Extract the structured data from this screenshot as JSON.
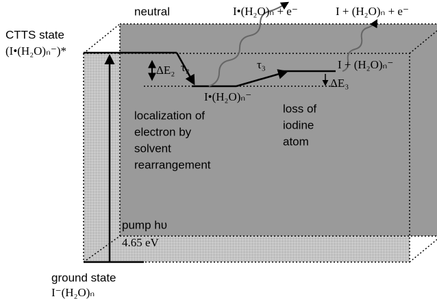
{
  "labels": {
    "neutral": "neutral",
    "top_product_1": "I•(H₂O)ₙ + e⁻",
    "top_product_2": "I + (H₂O)ₙ + e⁻",
    "ctts_title": "CTTS state",
    "ctts_formula": "(I•(H₂O)ₙ⁻)*",
    "delta_e2": "ΔE₂",
    "tau2": "τ₂",
    "intermediate": "I•(H₂O)ₙ⁻",
    "tau3": "τ₃",
    "final": "I + (H₂O)ₙ⁻",
    "delta_e3": "ΔE₃",
    "localization": [
      "localization of",
      "electron by",
      "solvent",
      "rearrangement"
    ],
    "loss": [
      "loss of",
      "iodine",
      "atom"
    ],
    "pump": "pump hυ",
    "pump_energy": "4.65 eV",
    "ground_title": "ground state",
    "ground_formula": "I⁻(H₂O)ₙ"
  }
}
